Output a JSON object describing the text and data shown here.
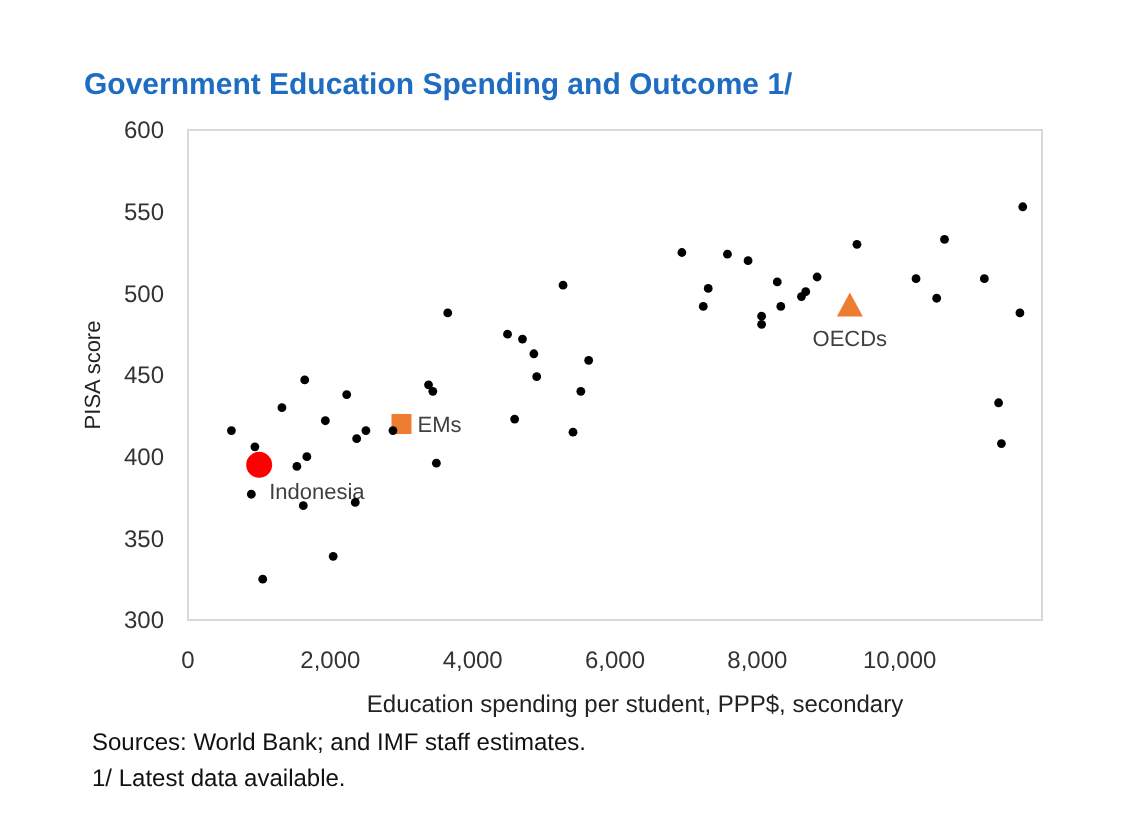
{
  "chart_data": {
    "type": "scatter",
    "title": "Government Education Spending and Outcome 1/",
    "xlabel": "Education spending per student, PPP$, secondary",
    "ylabel": "PISA score",
    "annotations": [
      "Sources: World Bank; and IMF staff estimates.",
      "1/ Latest data available."
    ],
    "xlim": [
      0,
      12000
    ],
    "ylim": [
      300,
      600
    ],
    "xticks": [
      0,
      {
        "value": 2000,
        "label": "2,000"
      },
      {
        "value": 4000,
        "label": "4,000"
      },
      {
        "value": 6000,
        "label": "6,000"
      },
      {
        "value": 8000,
        "label": "8,000"
      },
      {
        "value": 10000,
        "label": "10,000"
      }
    ],
    "yticks": [
      300,
      350,
      400,
      450,
      500,
      550,
      600
    ],
    "grid": false,
    "series": [
      {
        "color": "#000000",
        "marker": "circle",
        "x": [
          610,
          940,
          1640,
          1320,
          2230,
          1930,
          2500,
          2370,
          2880,
          1670,
          1530,
          890,
          1620,
          2350,
          2040,
          1050,
          3650,
          3380,
          3440,
          3490,
          4490,
          4700,
          4860,
          4900,
          4590,
          5270,
          5630,
          5520,
          5410,
          6940,
          7580,
          7870,
          7310,
          7240,
          8280,
          8060,
          8060,
          8330,
          8620,
          8680,
          8840,
          9400,
          10230,
          10520,
          10630,
          11190,
          11690,
          11730,
          11390,
          11430
        ],
        "values": [
          416,
          406,
          447,
          430,
          438,
          422,
          416,
          411,
          416,
          400,
          394,
          377,
          370,
          372,
          339,
          325,
          488,
          444,
          440,
          396,
          475,
          472,
          463,
          449,
          423,
          505,
          459,
          440,
          415,
          525,
          524,
          520,
          503,
          492,
          507,
          486,
          481,
          492,
          498,
          501,
          510,
          530,
          509,
          497,
          533,
          509,
          488,
          553,
          433,
          408
        ]
      },
      {
        "name": "Indonesia",
        "color": "#ff0000",
        "marker": "circle",
        "x": [
          1000
        ],
        "values": [
          395
        ]
      },
      {
        "name": "EMs",
        "color": "#ed7d31",
        "marker": "square",
        "x": [
          3000
        ],
        "values": [
          420
        ]
      },
      {
        "name": "OECDs",
        "color": "#ed7d31",
        "marker": "triangle",
        "x": [
          9300
        ],
        "values": [
          492
        ]
      }
    ]
  }
}
